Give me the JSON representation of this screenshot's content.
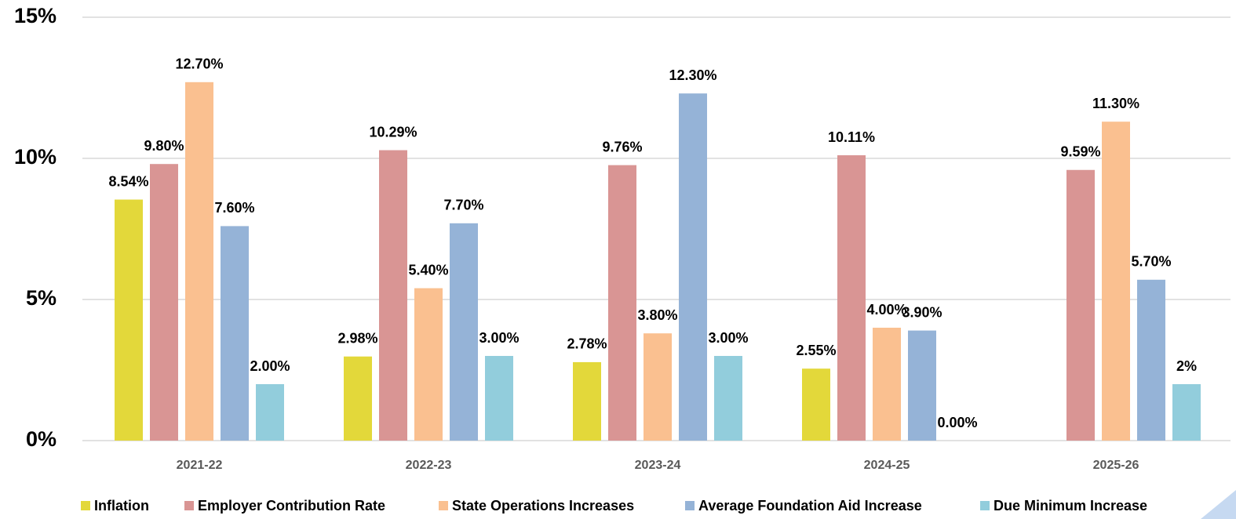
{
  "chart_data": {
    "type": "bar",
    "categories": [
      "2021-22",
      "2022-23",
      "2023-24",
      "2024-25",
      "2025-26"
    ],
    "series": [
      {
        "name": "Inflation",
        "color": "#e3d83a",
        "values": [
          8.54,
          2.98,
          2.78,
          2.55,
          null
        ],
        "value_labels": [
          "8.54%",
          "2.98%",
          "2.78%",
          "2.55%",
          null
        ]
      },
      {
        "name": "Employer Contribution Rate",
        "color": "#d99594",
        "values": [
          9.8,
          10.29,
          9.76,
          10.11,
          9.59
        ],
        "value_labels": [
          "9.80%",
          "10.29%",
          "9.76%",
          "10.11%",
          "9.59%"
        ]
      },
      {
        "name": "State Operations Increases",
        "color": "#fac090",
        "values": [
          12.7,
          5.4,
          3.8,
          4.0,
          11.3
        ],
        "value_labels": [
          "12.70%",
          "5.40%",
          "3.80%",
          "4.00%",
          "11.30%"
        ]
      },
      {
        "name": "Average Foundation Aid Increase",
        "color": "#95b3d7",
        "values": [
          7.6,
          7.7,
          12.3,
          3.9,
          5.7
        ],
        "value_labels": [
          "7.60%",
          "7.70%",
          "12.30%",
          "3.90%",
          "5.70%"
        ]
      },
      {
        "name": "Due Minimum Increase",
        "color": "#92cddc",
        "values": [
          2.0,
          3.0,
          3.0,
          0.0,
          2
        ],
        "value_labels": [
          "2.00%",
          "3.00%",
          "3.00%",
          "0.00%",
          "2%"
        ]
      }
    ],
    "ylim": [
      0,
      15
    ],
    "yticks": [
      {
        "value": 0,
        "label": "0%"
      },
      {
        "value": 5,
        "label": "5%"
      },
      {
        "value": 10,
        "label": "10%"
      },
      {
        "value": 15,
        "label": "15%"
      }
    ],
    "grid": true,
    "legend": "bottom"
  }
}
